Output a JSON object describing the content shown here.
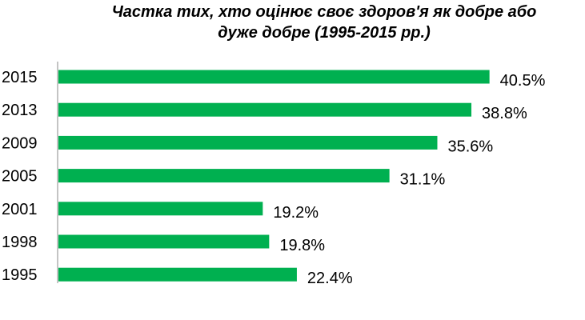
{
  "chart_data": {
    "type": "bar",
    "orientation": "horizontal",
    "title": "Частка тих, хто оцінює своє здоров'я як добре або дуже добре (1995-2015 рр.)",
    "title_lines": [
      "Частка тих, хто оцінює своє здоров'я як добре або",
      "дуже добре (1995-2015 рр.)"
    ],
    "categories": [
      "2015",
      "2013",
      "2009",
      "2005",
      "2001",
      "1998",
      "1995"
    ],
    "values": [
      40.5,
      38.8,
      35.6,
      31.1,
      19.2,
      19.8,
      22.4
    ],
    "data_labels": [
      "40.5%",
      "38.8%",
      "35.6%",
      "31.1%",
      "19.2%",
      "19.8%",
      "22.4%"
    ],
    "xlabel": "",
    "ylabel": "",
    "grid": false,
    "legend": "none",
    "bar_color": "#00b050"
  }
}
